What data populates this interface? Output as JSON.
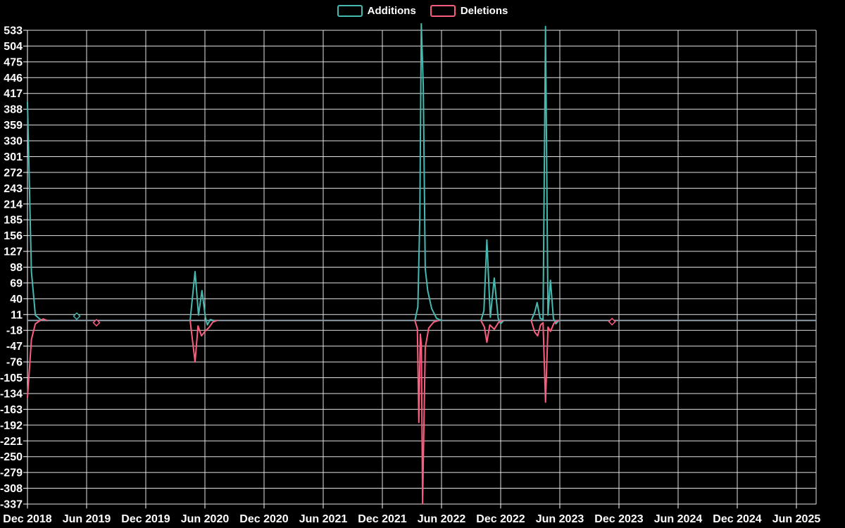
{
  "chart_data": {
    "type": "line",
    "title": "",
    "legend_position": "top",
    "background_color": "#000000",
    "grid": true,
    "grid_color": "#e3e3e3",
    "text_color": "#ffffff",
    "zero_line_color": "#8c9ea9",
    "x_axis": {
      "unit": "months_since_dec_2018",
      "tick_interval_months": 6,
      "tick_labels": [
        "Dec 2018",
        "Jun 2019",
        "Dec 2019",
        "Jun 2020",
        "Dec 2020",
        "Jun 2021",
        "Dec 2021",
        "Jun 2022",
        "Dec 2022",
        "Jun 2023",
        "Dec 2023",
        "Jun 2024",
        "Dec 2024",
        "Jun 2025"
      ]
    },
    "y_axis": {
      "min": -337,
      "max": 533,
      "tick_step": 29,
      "tick_values": [
        533,
        504,
        475,
        446,
        417,
        388,
        359,
        330,
        301,
        272,
        243,
        214,
        185,
        156,
        127,
        98,
        69,
        40,
        11,
        -18,
        -47,
        -76,
        -105,
        -134,
        -163,
        -192,
        -221,
        -250,
        -279,
        -308,
        -337
      ]
    },
    "series": [
      {
        "name": "Additions",
        "color": "#46b9b1",
        "segments": [
          [
            [
              0,
              401
            ],
            [
              0.4,
              90
            ],
            [
              0.8,
              10
            ],
            [
              1.3,
              2
            ],
            [
              2,
              0
            ]
          ],
          [
            [
              16.5,
              0
            ],
            [
              17,
              90
            ],
            [
              17.35,
              10
            ],
            [
              17.7,
              55
            ],
            [
              18.05,
              6
            ],
            [
              18.25,
              -8
            ],
            [
              18.55,
              2
            ],
            [
              18.9,
              0
            ]
          ],
          [
            [
              39.3,
              0
            ],
            [
              39.6,
              25
            ],
            [
              39.8,
              190
            ],
            [
              39.95,
              545
            ],
            [
              40.15,
              430
            ],
            [
              40.35,
              95
            ],
            [
              40.6,
              55
            ],
            [
              41,
              22
            ],
            [
              41.5,
              4
            ],
            [
              42,
              0
            ]
          ],
          [
            [
              46,
              0
            ],
            [
              46.3,
              18
            ],
            [
              46.6,
              148
            ],
            [
              46.95,
              6
            ],
            [
              47.35,
              78
            ],
            [
              47.75,
              4
            ],
            [
              48,
              -6
            ],
            [
              48.3,
              0
            ]
          ],
          [
            [
              51.1,
              0
            ],
            [
              51.45,
              15
            ],
            [
              51.7,
              33
            ],
            [
              52,
              4
            ],
            [
              52.3,
              2
            ],
            [
              52.55,
              540
            ],
            [
              52.8,
              10
            ],
            [
              53.05,
              74
            ],
            [
              53.35,
              4
            ],
            [
              53.6,
              -6
            ],
            [
              53.9,
              0
            ]
          ]
        ],
        "markers": [
          [
            5,
            8
          ]
        ]
      },
      {
        "name": "Deletions",
        "color": "#fa5e7e",
        "segments": [
          [
            [
              0,
              -142
            ],
            [
              0.4,
              -35
            ],
            [
              0.8,
              -6
            ],
            [
              1.2,
              -1
            ],
            [
              1.6,
              3
            ],
            [
              2,
              0
            ]
          ],
          [
            [
              16.5,
              0
            ],
            [
              17,
              -76
            ],
            [
              17.3,
              -10
            ],
            [
              17.65,
              -28
            ],
            [
              18,
              -20
            ],
            [
              18.4,
              -13
            ],
            [
              18.8,
              -3
            ],
            [
              19.2,
              0
            ]
          ],
          [
            [
              39.3,
              0
            ],
            [
              39.55,
              -15
            ],
            [
              39.7,
              -187
            ],
            [
              39.85,
              -25
            ],
            [
              39.96,
              -45
            ],
            [
              40.08,
              -337
            ],
            [
              40.35,
              -50
            ],
            [
              40.7,
              -14
            ],
            [
              41.2,
              -3
            ],
            [
              41.7,
              0
            ]
          ],
          [
            [
              46,
              0
            ],
            [
              46.35,
              -12
            ],
            [
              46.6,
              -40
            ],
            [
              46.9,
              -8
            ],
            [
              47.35,
              -16
            ],
            [
              47.8,
              -3
            ],
            [
              48.2,
              0
            ]
          ],
          [
            [
              51.1,
              0
            ],
            [
              51.45,
              -21
            ],
            [
              51.75,
              -28
            ],
            [
              52.05,
              -8
            ],
            [
              52.3,
              -4
            ],
            [
              52.55,
              -150
            ],
            [
              52.8,
              -12
            ],
            [
              53.05,
              -20
            ],
            [
              53.4,
              -5
            ],
            [
              53.8,
              0
            ]
          ]
        ],
        "markers": [
          [
            7,
            -4
          ],
          [
            59.3,
            -2
          ]
        ]
      }
    ]
  }
}
